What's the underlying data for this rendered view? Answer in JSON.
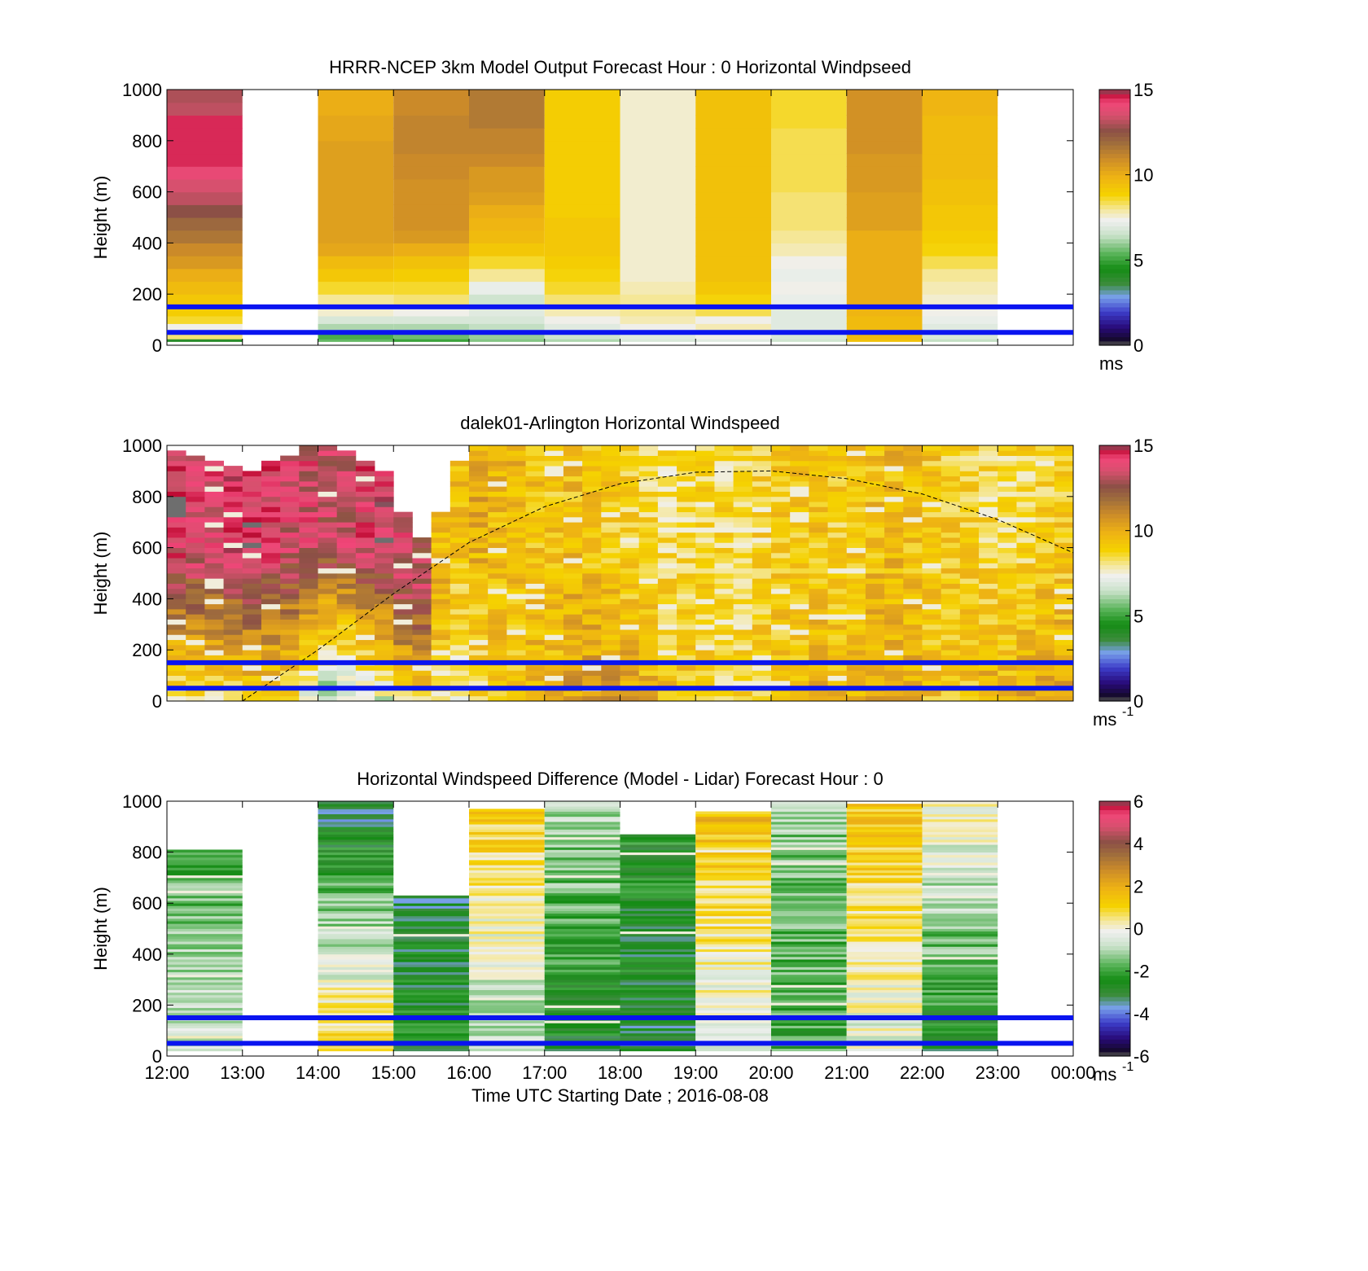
{
  "figure": {
    "xlabel": "Time UTC  Starting Date ; 2016-08-08"
  },
  "chart_data": [
    {
      "type": "heatmap",
      "title": "HRRR-NCEP 3km Model Output   Forecast Hour : 0 Horizontal Windpseed",
      "ylabel": "Height (m)",
      "ylim": [
        0,
        1000
      ],
      "yticks": [
        "0",
        "200",
        "400",
        "600",
        "800",
        "1000"
      ],
      "xlim": [
        0,
        12
      ],
      "x_unit": "hours after 12:00 UTC",
      "heights": [
        25,
        55,
        85,
        115,
        150,
        200,
        250,
        300,
        350,
        400,
        450,
        500,
        550,
        600,
        650,
        700,
        750,
        800,
        850,
        900,
        950,
        1000
      ],
      "columns": [
        {
          "time": "12:00",
          "values": [
            4.0,
            8.2,
            7.4,
            8.6,
            9.0,
            9.2,
            9.6,
            10.0,
            10.6,
            11.0,
            11.6,
            12.0,
            12.6,
            13.2,
            13.5,
            14.0,
            14.5,
            14.5,
            14.5,
            14.5,
            13.2,
            13.0
          ]
        },
        {
          "time": "13:00",
          "values": null
        },
        {
          "time": "14:00",
          "values": [
            5.5,
            5.2,
            6.2,
            6.8,
            7.6,
            8.0,
            8.6,
            9.2,
            9.6,
            10.2,
            10.4,
            10.4,
            10.4,
            10.4,
            10.4,
            10.4,
            10.4,
            10.4,
            10.2,
            10.2,
            10.0,
            10.0
          ]
        },
        {
          "time": "15:00",
          "values": [
            5.0,
            5.6,
            6.2,
            6.8,
            7.4,
            8.2,
            8.6,
            9.0,
            9.4,
            10.0,
            10.6,
            10.8,
            10.8,
            10.8,
            10.8,
            11.0,
            11.0,
            11.2,
            11.2,
            11.2,
            11.0,
            11.0
          ]
        },
        {
          "time": "16:00",
          "values": [
            5.8,
            6.0,
            6.4,
            6.8,
            7.0,
            6.6,
            7.2,
            8.0,
            8.6,
            9.2,
            9.6,
            9.8,
            10.0,
            10.4,
            10.6,
            10.6,
            11.0,
            11.2,
            11.2,
            11.5,
            11.5,
            11.5
          ]
        },
        {
          "time": "17:00",
          "values": [
            6.2,
            6.6,
            7.0,
            7.4,
            7.8,
            8.2,
            8.6,
            8.8,
            9.0,
            9.2,
            9.2,
            9.2,
            9.0,
            9.0,
            9.0,
            9.0,
            9.0,
            9.0,
            9.0,
            9.0,
            9.0,
            9.0
          ]
        },
        {
          "time": "18:00",
          "values": [
            6.8,
            7.0,
            7.4,
            7.8,
            8.0,
            8.0,
            7.8,
            7.6,
            7.6,
            7.6,
            7.6,
            7.6,
            7.6,
            7.6,
            7.6,
            7.6,
            7.6,
            7.6,
            7.6,
            7.6,
            7.6,
            7.6
          ]
        },
        {
          "time": "19:00",
          "values": [
            7.0,
            7.4,
            7.8,
            7.4,
            8.4,
            8.8,
            9.2,
            9.4,
            9.4,
            9.4,
            9.4,
            9.4,
            9.4,
            9.4,
            9.4,
            9.4,
            9.4,
            9.4,
            9.4,
            9.4,
            9.4,
            9.4
          ]
        },
        {
          "time": "20:00",
          "values": [
            6.6,
            6.8,
            7.0,
            7.0,
            7.0,
            7.2,
            7.4,
            7.2,
            7.4,
            7.8,
            8.0,
            8.2,
            8.2,
            8.2,
            8.4,
            8.4,
            8.4,
            8.4,
            8.4,
            8.6,
            8.6,
            8.6
          ]
        },
        {
          "time": "21:00",
          "values": [
            9.4,
            9.6,
            9.6,
            9.6,
            9.8,
            10.0,
            10.0,
            10.0,
            10.0,
            10.0,
            10.0,
            10.4,
            10.4,
            10.4,
            10.6,
            10.6,
            10.6,
            10.8,
            10.8,
            10.8,
            10.8,
            10.8
          ]
        },
        {
          "time": "22:00",
          "values": [
            6.4,
            6.8,
            7.0,
            7.2,
            7.4,
            7.6,
            7.8,
            8.0,
            8.4,
            8.8,
            9.0,
            9.2,
            9.2,
            9.4,
            9.4,
            9.6,
            9.6,
            9.6,
            9.6,
            9.6,
            9.8,
            9.8
          ]
        },
        {
          "time": "23:00",
          "values": null
        }
      ],
      "horizontal_lines_m": [
        50,
        150
      ],
      "colorbar": {
        "range": [
          0,
          15
        ],
        "ticks": [
          "0",
          "5",
          "10",
          "15"
        ],
        "unit": "ms"
      }
    },
    {
      "type": "heatmap",
      "title": "dalek01-Arlington  Horizontal Windspeed",
      "ylabel": "Height (m)",
      "ylim": [
        0,
        1000
      ],
      "yticks": [
        "0",
        "200",
        "400",
        "600",
        "800",
        "1000"
      ],
      "xlim": [
        0,
        12
      ],
      "x_unit": "hours after 12:00 UTC",
      "profile_step_hours": 0.25,
      "profiles": [
        {
          "time": "12:00",
          "top_m": 970,
          "lower_mean": 8.0,
          "upper_mean": 14.2
        },
        {
          "time": "12:15",
          "top_m": 960,
          "lower_mean": 8.2,
          "upper_mean": 14.0
        },
        {
          "time": "12:30",
          "top_m": 940,
          "lower_mean": 8.2,
          "upper_mean": 13.8
        },
        {
          "time": "12:45",
          "top_m": 920,
          "lower_mean": 8.4,
          "upper_mean": 14.0
        },
        {
          "time": "13:00",
          "top_m": 900,
          "lower_mean": 8.8,
          "upper_mean": 14.2
        },
        {
          "time": "13:15",
          "top_m": 940,
          "lower_mean": 8.6,
          "upper_mean": 14.0
        },
        {
          "time": "13:30",
          "top_m": 960,
          "lower_mean": 8.4,
          "upper_mean": 13.6
        },
        {
          "time": "13:45",
          "top_m": 990,
          "lower_mean": 7.2,
          "upper_mean": 13.6
        },
        {
          "time": "14:00",
          "top_m": 1000,
          "lower_mean": 6.0,
          "upper_mean": 13.4
        },
        {
          "time": "14:15",
          "top_m": 980,
          "lower_mean": 6.2,
          "upper_mean": 13.4
        },
        {
          "time": "14:30",
          "top_m": 940,
          "lower_mean": 6.6,
          "upper_mean": 13.8
        },
        {
          "time": "14:45",
          "top_m": 900,
          "lower_mean": 7.0,
          "upper_mean": 14.0
        },
        {
          "time": "15:00",
          "top_m": 730,
          "lower_mean": 8.6,
          "upper_mean": 13.4
        },
        {
          "time": "15:15",
          "top_m": 630,
          "lower_mean": 8.6,
          "upper_mean": 13.2
        },
        {
          "time": "15:30",
          "top_m": 740,
          "lower_mean": 8.8,
          "upper_mean": 9.8
        },
        {
          "time": "15:45",
          "top_m": 940,
          "lower_mean": 7.6,
          "upper_mean": 9.6
        },
        {
          "time": "16:00",
          "top_m": 1000,
          "lower_mean": 8.4,
          "upper_mean": 10.0
        },
        {
          "time": "16:15",
          "top_m": 1000,
          "lower_mean": 9.0,
          "upper_mean": 9.6
        },
        {
          "time": "16:30",
          "top_m": 1000,
          "lower_mean": 9.2,
          "upper_mean": 9.6
        },
        {
          "time": "16:45",
          "top_m": 1000,
          "lower_mean": 9.6,
          "upper_mean": 9.4
        },
        {
          "time": "17:00",
          "top_m": 1000,
          "lower_mean": 9.8,
          "upper_mean": 9.2
        },
        {
          "time": "17:15",
          "top_m": 1000,
          "lower_mean": 10.4,
          "upper_mean": 9.4
        },
        {
          "time": "17:30",
          "top_m": 990,
          "lower_mean": 10.6,
          "upper_mean": 9.2
        },
        {
          "time": "17:45",
          "top_m": 990,
          "lower_mean": 10.6,
          "upper_mean": 9.0
        },
        {
          "time": "18:00",
          "top_m": 1000,
          "lower_mean": 10.2,
          "upper_mean": 8.8
        },
        {
          "time": "18:15",
          "top_m": 1000,
          "lower_mean": 9.8,
          "upper_mean": 8.6
        },
        {
          "time": "18:30",
          "top_m": 980,
          "lower_mean": 9.6,
          "upper_mean": 8.4
        },
        {
          "time": "18:45",
          "top_m": 980,
          "lower_mean": 9.4,
          "upper_mean": 8.4
        },
        {
          "time": "19:00",
          "top_m": 1000,
          "lower_mean": 9.0,
          "upper_mean": 8.6
        },
        {
          "time": "19:15",
          "top_m": 1000,
          "lower_mean": 8.6,
          "upper_mean": 8.6
        },
        {
          "time": "19:30",
          "top_m": 1000,
          "lower_mean": 8.8,
          "upper_mean": 8.6
        },
        {
          "time": "19:45",
          "top_m": 1000,
          "lower_mean": 9.0,
          "upper_mean": 8.8
        },
        {
          "time": "20:00",
          "top_m": 1000,
          "lower_mean": 9.4,
          "upper_mean": 9.0
        },
        {
          "time": "20:15",
          "top_m": 1000,
          "lower_mean": 9.6,
          "upper_mean": 9.2
        },
        {
          "time": "20:30",
          "top_m": 1000,
          "lower_mean": 9.8,
          "upper_mean": 9.2
        },
        {
          "time": "20:45",
          "top_m": 1000,
          "lower_mean": 9.6,
          "upper_mean": 9.0
        },
        {
          "time": "21:00",
          "top_m": 1000,
          "lower_mean": 9.8,
          "upper_mean": 9.2
        },
        {
          "time": "21:15",
          "top_m": 1000,
          "lower_mean": 10.2,
          "upper_mean": 9.4
        },
        {
          "time": "21:30",
          "top_m": 1000,
          "lower_mean": 10.0,
          "upper_mean": 9.6
        },
        {
          "time": "21:45",
          "top_m": 1000,
          "lower_mean": 9.8,
          "upper_mean": 9.4
        },
        {
          "time": "22:00",
          "top_m": 1000,
          "lower_mean": 9.4,
          "upper_mean": 9.2
        },
        {
          "time": "22:15",
          "top_m": 1000,
          "lower_mean": 9.2,
          "upper_mean": 9.0
        },
        {
          "time": "22:30",
          "top_m": 1000,
          "lower_mean": 9.4,
          "upper_mean": 8.8
        },
        {
          "time": "22:45",
          "top_m": 990,
          "lower_mean": 9.8,
          "upper_mean": 8.6
        },
        {
          "time": "23:00",
          "top_m": 990,
          "lower_mean": 9.8,
          "upper_mean": 8.4
        },
        {
          "time": "23:15",
          "top_m": 990,
          "lower_mean": 10.0,
          "upper_mean": 8.6
        },
        {
          "time": "23:30",
          "top_m": 990,
          "lower_mean": 10.4,
          "upper_mean": 8.8
        },
        {
          "time": "23:45",
          "top_m": 990,
          "lower_mean": 10.2,
          "upper_mean": 9.0
        }
      ],
      "dashed_curve": {
        "x_hours": [
          1.0,
          2.0,
          3.0,
          4.0,
          5.0,
          6.0,
          7.0,
          8.0,
          9.0,
          10.0,
          11.0,
          12.0
        ],
        "y_m": [
          0,
          200,
          420,
          620,
          760,
          850,
          895,
          900,
          870,
          810,
          710,
          580
        ]
      },
      "horizontal_lines_m": [
        50,
        150
      ],
      "colorbar": {
        "range": [
          0,
          15
        ],
        "ticks": [
          "0",
          "5",
          "10",
          "15"
        ],
        "unit": "ms",
        "unit_exponent": "-1"
      }
    },
    {
      "type": "heatmap",
      "title": "Horizontal Windspeed Difference (Model - Lidar) Forecast Hour : 0",
      "ylabel": "Height (m)",
      "ylim": [
        0,
        1000
      ],
      "yticks": [
        "0",
        "200",
        "400",
        "600",
        "800",
        "1000"
      ],
      "xlim": [
        0,
        12
      ],
      "xticks": [
        "12:00",
        "13:00",
        "14:00",
        "15:00",
        "16:00",
        "17:00",
        "18:00",
        "19:00",
        "20:00",
        "21:00",
        "22:00",
        "23:00",
        "00:00"
      ],
      "x_unit": "hours after 12:00 UTC",
      "columns": [
        {
          "time": "12:00",
          "top_m": 810,
          "bottom_mean": -0.4,
          "top_mean": -2.0
        },
        {
          "time": "13:00",
          "top_m": null,
          "bottom_mean": null,
          "top_mean": null
        },
        {
          "time": "14:00",
          "top_m": 1000,
          "bottom_mean": 1.2,
          "top_mean": -3.4
        },
        {
          "time": "15:00",
          "top_m": 630,
          "bottom_mean": -2.4,
          "top_mean": -3.0
        },
        {
          "time": "16:00",
          "top_m": 970,
          "bottom_mean": -1.2,
          "top_mean": 1.2
        },
        {
          "time": "17:00",
          "top_m": 1000,
          "bottom_mean": -2.8,
          "top_mean": -1.0
        },
        {
          "time": "18:00",
          "top_m": 870,
          "bottom_mean": -3.0,
          "top_mean": -2.4
        },
        {
          "time": "19:00",
          "top_m": 960,
          "bottom_mean": -0.6,
          "top_mean": 1.6
        },
        {
          "time": "20:00",
          "top_m": 1000,
          "bottom_mean": -2.0,
          "top_mean": -1.2
        },
        {
          "time": "21:00",
          "top_m": 990,
          "bottom_mean": -0.4,
          "top_mean": 1.4
        },
        {
          "time": "22:00",
          "top_m": 1000,
          "bottom_mean": -2.8,
          "top_mean": 0.2
        },
        {
          "time": "23:00",
          "top_m": null,
          "bottom_mean": null,
          "top_mean": null
        }
      ],
      "horizontal_lines_m": [
        50,
        150
      ],
      "colorbar": {
        "range": [
          -6,
          6
        ],
        "ticks": [
          "-6",
          "-4",
          "-2",
          "0",
          "2",
          "4",
          "6"
        ],
        "unit": "ms",
        "unit_exponent": "-1"
      }
    }
  ]
}
